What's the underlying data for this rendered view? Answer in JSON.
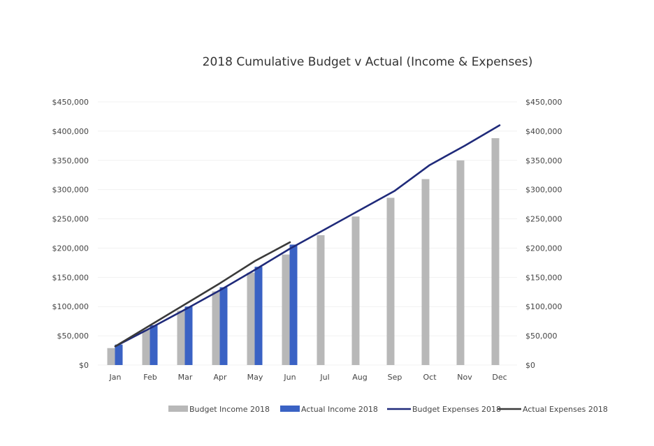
{
  "chart_data": {
    "type": "bar",
    "title": "2018 Cumulative Budget v Actual (Income & Expenses)",
    "categories": [
      "Jan",
      "Feb",
      "Mar",
      "Apr",
      "May",
      "Jun",
      "Jul",
      "Aug",
      "Sep",
      "Oct",
      "Nov",
      "Dec"
    ],
    "ylim": [
      0,
      450000
    ],
    "y_ticks": [
      "$0",
      "$50,000",
      "$100,000",
      "$150,000",
      "$200,000",
      "$250,000",
      "$300,000",
      "$350,000",
      "$400,000",
      "$450,000"
    ],
    "y2_ticks": [
      "$0",
      "$50,000",
      "$100,000",
      "$150,000",
      "$200,000",
      "$250,000",
      "$300,000",
      "$350,000",
      "$400,000",
      "$450,000"
    ],
    "grid": true,
    "legend_position": "bottom",
    "series": [
      {
        "name": "Budget Income 2018",
        "kind": "bar",
        "color": "#b8b8b8",
        "values": [
          29000,
          60000,
          93000,
          126000,
          158000,
          189000,
          222000,
          254000,
          286000,
          318000,
          350000,
          388000
        ]
      },
      {
        "name": "Actual Income 2018",
        "kind": "bar",
        "color": "#3a62c4",
        "values": [
          35000,
          68000,
          100000,
          133000,
          168000,
          206000,
          null,
          null,
          null,
          null,
          null,
          null
        ]
      },
      {
        "name": "Budget Expenses 2018",
        "kind": "line",
        "color": "#1f2a7a",
        "values": [
          32000,
          63000,
          95000,
          128000,
          163000,
          199000,
          232000,
          265000,
          298000,
          342000,
          375000,
          410000
        ]
      },
      {
        "name": "Actual Expenses 2018",
        "kind": "line",
        "color": "#3a3a3a",
        "values": [
          32000,
          68000,
          104000,
          140000,
          178000,
          210000,
          null,
          null,
          null,
          null,
          null,
          null
        ]
      }
    ]
  }
}
